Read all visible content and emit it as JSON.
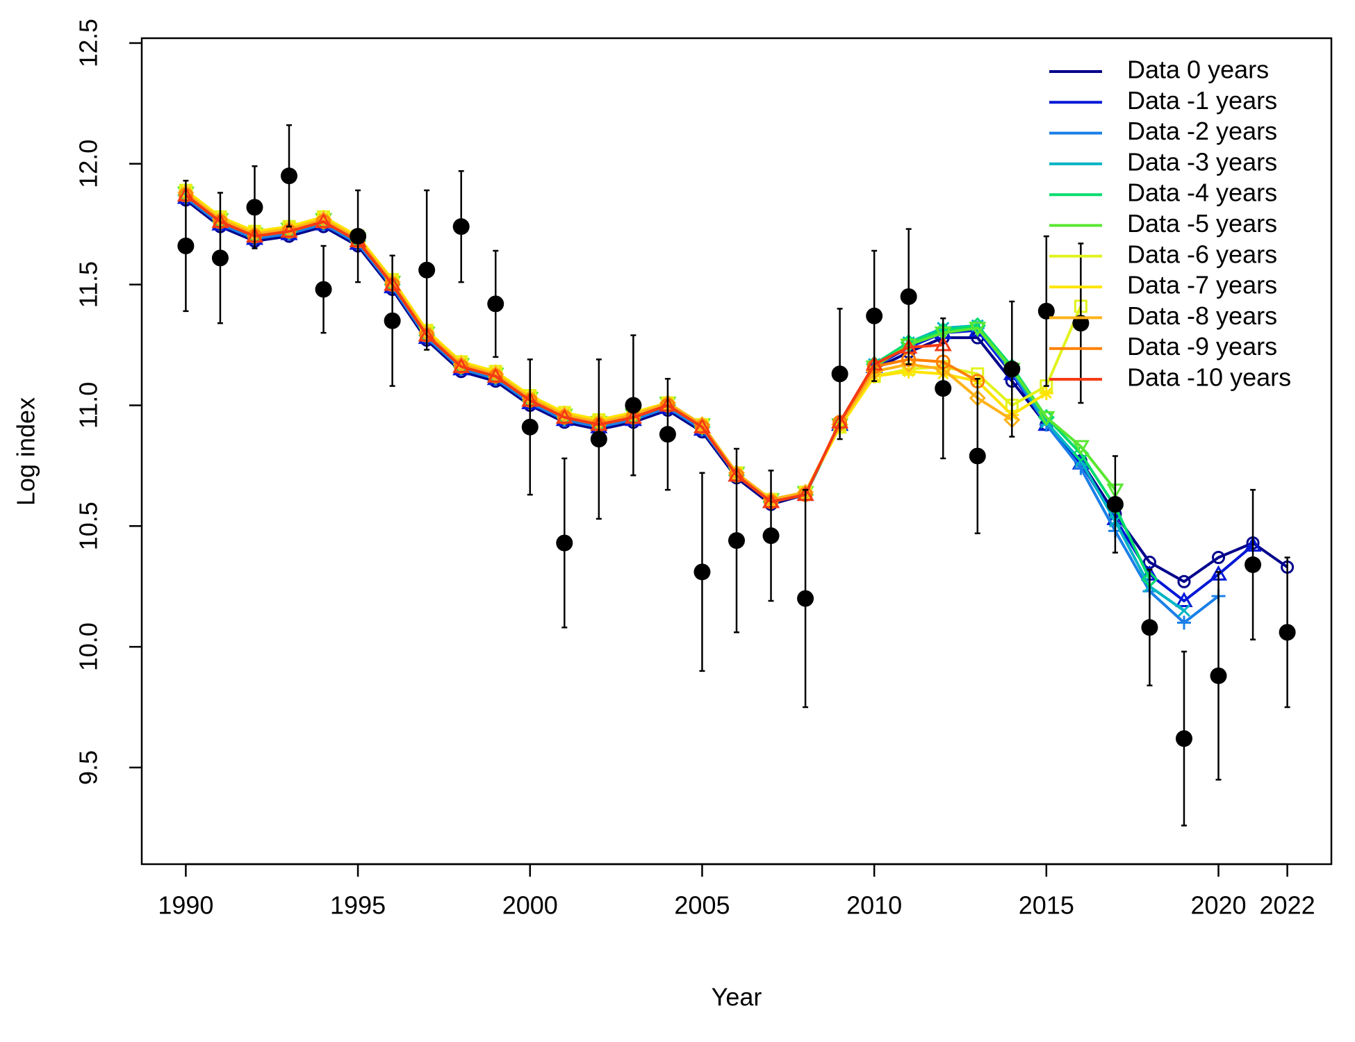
{
  "chart_data": {
    "type": "line",
    "x_label": "Year",
    "y_label": "Log index",
    "x": [
      1990,
      1991,
      1992,
      1993,
      1994,
      1995,
      1996,
      1997,
      1998,
      1999,
      2000,
      2001,
      2002,
      2003,
      2004,
      2005,
      2006,
      2007,
      2008,
      2009,
      2010,
      2011,
      2012,
      2013,
      2014,
      2015,
      2016,
      2017,
      2018,
      2019,
      2020,
      2021,
      2022
    ],
    "xlim": [
      1988.72,
      2023.28
    ],
    "xticks": [
      1990,
      1995,
      2000,
      2005,
      2010,
      2015,
      2020,
      2022
    ],
    "ylim": [
      9.1,
      12.52
    ],
    "yticks": [
      9.5,
      {
        "value": 10,
        "label": "10.0"
      },
      10.5,
      {
        "value": 11,
        "label": "11.0"
      },
      11.5,
      {
        "value": 12,
        "label": "12.0"
      },
      12.5
    ],
    "legend": "top-right",
    "points": {
      "color": "#000000",
      "values": [
        11.66,
        11.61,
        11.82,
        11.95,
        11.48,
        11.7,
        11.35,
        11.56,
        11.74,
        11.42,
        10.91,
        10.43,
        10.86,
        11.0,
        10.88,
        10.31,
        10.44,
        10.46,
        10.2,
        11.13,
        11.37,
        11.45,
        11.07,
        10.79,
        11.15,
        11.39,
        11.34,
        10.59,
        10.08,
        9.62,
        9.88,
        10.34,
        10.06
      ],
      "errors": [
        0.27,
        0.27,
        0.17,
        0.21,
        0.18,
        0.19,
        0.27,
        0.33,
        0.23,
        0.22,
        0.28,
        0.35,
        0.33,
        0.29,
        0.23,
        0.41,
        0.38,
        0.27,
        0.45,
        0.27,
        0.27,
        0.28,
        0.29,
        0.32,
        0.28,
        0.31,
        0.33,
        0.2,
        0.24,
        0.36,
        0.43,
        0.31,
        0.31
      ]
    },
    "series": [
      {
        "name": "Data 0 years",
        "color": "#00008b",
        "values": [
          11.85,
          11.74,
          11.68,
          11.7,
          11.74,
          11.66,
          11.48,
          11.27,
          11.14,
          11.1,
          11.0,
          10.93,
          10.9,
          10.93,
          10.98,
          10.89,
          10.7,
          10.59,
          10.63,
          10.92,
          11.15,
          11.22,
          11.28,
          11.28,
          11.1,
          10.92,
          10.77,
          10.55,
          10.35,
          10.27,
          10.37,
          10.43,
          10.33
        ]
      },
      {
        "name": "Data -1 years",
        "color": "#0018d6",
        "values": [
          11.86,
          11.75,
          11.69,
          11.71,
          11.75,
          11.67,
          11.49,
          11.28,
          11.15,
          11.11,
          11.01,
          10.94,
          10.91,
          10.94,
          10.99,
          10.9,
          10.71,
          10.6,
          10.63,
          10.92,
          11.16,
          11.24,
          11.3,
          11.31,
          11.13,
          10.92,
          10.76,
          10.53,
          10.3,
          10.19,
          10.3,
          10.42,
          null
        ]
      },
      {
        "name": "Data -2 years",
        "color": "#1a7fe8",
        "values": [
          11.86,
          11.75,
          11.69,
          11.71,
          11.75,
          11.67,
          11.49,
          11.28,
          11.15,
          11.11,
          11.01,
          10.94,
          10.91,
          10.94,
          10.99,
          10.9,
          10.71,
          10.6,
          10.63,
          10.92,
          11.16,
          11.25,
          11.31,
          11.32,
          11.14,
          10.92,
          10.74,
          10.48,
          10.23,
          10.1,
          10.21,
          null,
          null
        ]
      },
      {
        "name": "Data -3 years",
        "color": "#00b4c4",
        "values": [
          11.87,
          11.76,
          11.7,
          11.72,
          11.76,
          11.68,
          11.5,
          11.29,
          11.16,
          11.12,
          11.02,
          10.95,
          10.92,
          10.95,
          11.0,
          10.91,
          10.71,
          10.6,
          10.63,
          10.92,
          11.17,
          11.26,
          11.32,
          11.33,
          11.15,
          10.93,
          10.77,
          10.52,
          10.25,
          10.15,
          null,
          null,
          null
        ]
      },
      {
        "name": "Data -4 years",
        "color": "#00dc6e",
        "values": [
          11.87,
          11.76,
          11.7,
          11.72,
          11.76,
          11.68,
          11.5,
          11.29,
          11.16,
          11.12,
          11.02,
          10.95,
          10.92,
          10.95,
          11.0,
          10.91,
          10.71,
          10.6,
          10.63,
          10.92,
          11.17,
          11.26,
          11.31,
          11.33,
          11.16,
          10.95,
          10.8,
          10.58,
          10.28,
          null,
          null,
          null,
          null
        ]
      },
      {
        "name": "Data -5 years",
        "color": "#5ae632",
        "values": [
          11.88,
          11.77,
          11.71,
          11.73,
          11.77,
          11.69,
          11.51,
          11.3,
          11.17,
          11.13,
          11.03,
          10.96,
          10.93,
          10.96,
          11.01,
          10.92,
          10.72,
          10.61,
          10.64,
          10.92,
          11.16,
          11.25,
          11.3,
          11.32,
          11.15,
          10.95,
          10.83,
          10.65,
          null,
          null,
          null,
          null,
          null
        ]
      },
      {
        "name": "Data -6 years",
        "color": "#e2f21e",
        "values": [
          11.89,
          11.78,
          11.72,
          11.74,
          11.78,
          11.7,
          11.52,
          11.31,
          11.18,
          11.14,
          11.04,
          10.97,
          10.94,
          10.97,
          11.01,
          10.92,
          10.72,
          10.61,
          10.64,
          10.91,
          11.12,
          11.15,
          11.16,
          11.13,
          11.0,
          11.08,
          11.41,
          null,
          null,
          null,
          null,
          null,
          null
        ]
      },
      {
        "name": "Data -7 years",
        "color": "#ffe400",
        "values": [
          11.89,
          11.78,
          11.72,
          11.74,
          11.78,
          11.7,
          11.52,
          11.31,
          11.18,
          11.14,
          11.04,
          10.97,
          10.94,
          10.97,
          11.01,
          10.92,
          10.72,
          10.61,
          10.64,
          10.91,
          11.12,
          11.14,
          11.13,
          11.1,
          10.96,
          11.05,
          null,
          null,
          null,
          null,
          null,
          null,
          null
        ]
      },
      {
        "name": "Data -8 years",
        "color": "#ffb21a",
        "values": [
          11.88,
          11.77,
          11.71,
          11.73,
          11.77,
          11.69,
          11.51,
          11.3,
          11.17,
          11.13,
          11.03,
          10.96,
          10.93,
          10.96,
          11.01,
          10.92,
          10.72,
          10.61,
          10.64,
          10.92,
          11.14,
          11.17,
          11.15,
          11.03,
          10.94,
          null,
          null,
          null,
          null,
          null,
          null,
          null,
          null
        ]
      },
      {
        "name": "Data -9 years",
        "color": "#ff8000",
        "values": [
          11.87,
          11.76,
          11.7,
          11.72,
          11.76,
          11.68,
          11.5,
          11.29,
          11.16,
          11.12,
          11.02,
          10.95,
          10.92,
          10.95,
          11.0,
          10.91,
          10.71,
          10.6,
          10.63,
          10.93,
          11.16,
          11.19,
          11.18,
          11.1,
          null,
          null,
          null,
          null,
          null,
          null,
          null,
          null,
          null
        ]
      },
      {
        "name": "Data -10 years",
        "color": "#f53a14",
        "values": [
          11.87,
          11.76,
          11.7,
          11.72,
          11.76,
          11.68,
          11.5,
          11.29,
          11.16,
          11.12,
          11.02,
          10.95,
          10.92,
          10.95,
          11.0,
          10.91,
          10.71,
          10.6,
          10.63,
          10.93,
          11.17,
          11.24,
          11.25,
          null,
          null,
          null,
          null,
          null,
          null,
          null,
          null,
          null,
          null
        ]
      }
    ]
  }
}
